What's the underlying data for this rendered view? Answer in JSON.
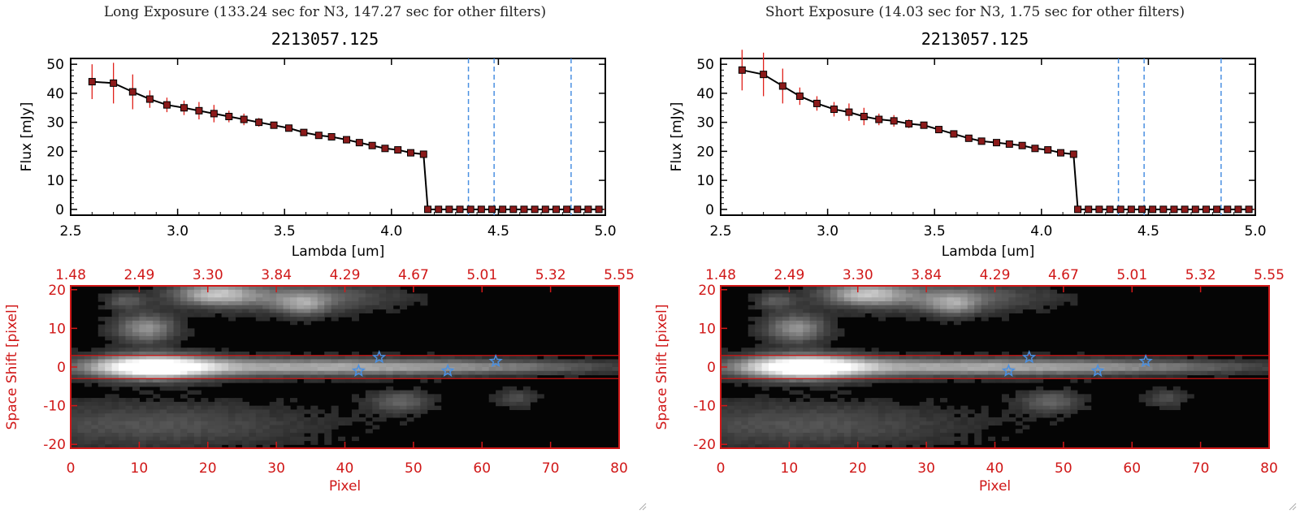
{
  "panels": [
    {
      "id": "left",
      "header": "Long Exposure (133.24 sec for N3, 147.27 sec for other filters)",
      "plot_id": "2213057.125"
    },
    {
      "id": "right",
      "header": "Short Exposure (14.03 sec for N3, 1.75 sec for other filters)",
      "plot_id": "2213057.125"
    }
  ],
  "colors": {
    "spectrum_line": "#000000",
    "marker_fill": "#8b1a1a",
    "error_bar": "#e0201a",
    "vline": "#4a90e2",
    "image_axis": "#d01818",
    "extraction_line": "#cc1010",
    "star": "#4a90e2"
  },
  "chart_data": [
    {
      "type": "line",
      "panel": "left",
      "xlabel": "Lambda [um]",
      "ylabel": "Flux [mJy]",
      "xlim": [
        2.5,
        5.0
      ],
      "ylim": [
        -2,
        52
      ],
      "xticks": [
        "2.5",
        "3.0",
        "3.5",
        "4.0",
        "4.5",
        "5.0"
      ],
      "yticks": [
        "0",
        "10",
        "20",
        "30",
        "40",
        "50"
      ],
      "x": [
        2.6,
        2.7,
        2.79,
        2.87,
        2.95,
        3.03,
        3.1,
        3.17,
        3.24,
        3.31,
        3.38,
        3.45,
        3.52,
        3.59,
        3.66,
        3.72,
        3.79,
        3.85,
        3.91,
        3.97,
        4.03,
        4.09,
        4.15,
        4.17,
        4.22,
        4.27,
        4.32,
        4.37,
        4.42,
        4.47,
        4.52,
        4.57,
        4.62,
        4.67,
        4.72,
        4.77,
        4.82,
        4.87,
        4.92,
        4.97
      ],
      "y": [
        44,
        43.5,
        40.5,
        38,
        36,
        35,
        34,
        33,
        32,
        31,
        30,
        29,
        28,
        26.5,
        25.5,
        25,
        24,
        23,
        22,
        21,
        20.5,
        19.5,
        19,
        0,
        0,
        0,
        0,
        0,
        0,
        0,
        0,
        0,
        0,
        0,
        0,
        0,
        0,
        0,
        0,
        0
      ],
      "yerr": [
        6,
        7,
        6,
        3,
        2.5,
        2.5,
        3,
        3,
        2,
        2,
        1.5,
        1,
        1,
        1,
        1,
        1,
        1,
        1,
        1,
        1,
        1,
        1,
        1,
        0,
        0,
        0,
        0,
        0,
        0,
        0,
        0,
        0,
        0,
        0,
        0,
        0,
        0,
        0,
        0,
        0
      ],
      "vlines": [
        4.36,
        4.48,
        4.84
      ]
    },
    {
      "type": "heatmap",
      "panel": "left",
      "xlabel": "Pixel",
      "ylabel": "Space Shift [pixel]",
      "xlim": [
        0,
        80
      ],
      "ylim": [
        -21,
        21
      ],
      "xticks": [
        "0",
        "10",
        "20",
        "30",
        "40",
        "50",
        "60",
        "70",
        "80"
      ],
      "yticks": [
        "-20",
        "-10",
        "0",
        "10",
        "20"
      ],
      "top_ticks": [
        "1.48",
        "2.49",
        "3.30",
        "3.84",
        "4.29",
        "4.67",
        "5.01",
        "5.32",
        "5.55"
      ],
      "extraction_lines": [
        3,
        -3
      ],
      "stars": [
        [
          42,
          -1
        ],
        [
          45,
          2.5
        ],
        [
          55,
          -1
        ],
        [
          62,
          1.5
        ]
      ],
      "blobs": [
        {
          "x": 12,
          "y": 0,
          "sx": 6,
          "sy": 2.2,
          "v": 1.0
        },
        {
          "x": 30,
          "y": 0,
          "sx": 20,
          "sy": 1.6,
          "v": 0.55
        },
        {
          "x": 60,
          "y": 0,
          "sx": 15,
          "sy": 1.2,
          "v": 0.3
        },
        {
          "x": 21,
          "y": 19,
          "sx": 4,
          "sy": 2,
          "v": 0.55
        },
        {
          "x": 32,
          "y": 18,
          "sx": 10,
          "sy": 2.5,
          "v": 0.35
        },
        {
          "x": 11,
          "y": 10,
          "sx": 3,
          "sy": 2.5,
          "v": 0.5
        },
        {
          "x": 34,
          "y": 16,
          "sx": 2.5,
          "sy": 2,
          "v": 0.35
        },
        {
          "x": 12,
          "y": -15,
          "sx": 16,
          "sy": 4,
          "v": 0.22
        },
        {
          "x": 48,
          "y": -9,
          "sx": 3,
          "sy": 2,
          "v": 0.3
        },
        {
          "x": 65,
          "y": -8,
          "sx": 2,
          "sy": 1.5,
          "v": 0.2
        },
        {
          "x": 8,
          "y": 17,
          "sx": 2,
          "sy": 1.5,
          "v": 0.25
        }
      ]
    },
    {
      "type": "line",
      "panel": "right",
      "xlabel": "Lambda [um]",
      "ylabel": "Flux [mJy]",
      "xlim": [
        2.5,
        5.0
      ],
      "ylim": [
        -2,
        52
      ],
      "xticks": [
        "2.5",
        "3.0",
        "3.5",
        "4.0",
        "4.5",
        "5.0"
      ],
      "yticks": [
        "0",
        "10",
        "20",
        "30",
        "40",
        "50"
      ],
      "x": [
        2.6,
        2.7,
        2.79,
        2.87,
        2.95,
        3.03,
        3.1,
        3.17,
        3.24,
        3.31,
        3.38,
        3.45,
        3.52,
        3.59,
        3.66,
        3.72,
        3.79,
        3.85,
        3.91,
        3.97,
        4.03,
        4.09,
        4.15,
        4.17,
        4.22,
        4.27,
        4.32,
        4.37,
        4.42,
        4.47,
        4.52,
        4.57,
        4.62,
        4.67,
        4.72,
        4.77,
        4.82,
        4.87,
        4.92,
        4.97
      ],
      "y": [
        48,
        46.5,
        42.5,
        39,
        36.5,
        34.5,
        33.5,
        32,
        31,
        30.5,
        29.5,
        29,
        27.5,
        26,
        24.5,
        23.5,
        23,
        22.5,
        22,
        21,
        20.5,
        19.5,
        19,
        0,
        0,
        0,
        0,
        0,
        0,
        0,
        0,
        0,
        0,
        0,
        0,
        0,
        0,
        0,
        0,
        0
      ],
      "yerr": [
        7,
        7.5,
        6,
        3,
        2.5,
        2.5,
        3,
        3,
        2,
        2,
        1.5,
        1,
        1,
        1,
        1,
        1,
        1,
        1,
        1,
        1,
        1,
        1,
        1,
        0,
        0,
        0,
        0,
        0,
        0,
        0,
        0,
        0,
        0,
        0,
        0,
        0,
        0,
        0,
        0,
        0
      ],
      "vlines": [
        4.36,
        4.48,
        4.84
      ]
    },
    {
      "type": "heatmap",
      "panel": "right",
      "xlabel": "Pixel",
      "ylabel": "Space Shift [pixel]",
      "xlim": [
        0,
        80
      ],
      "ylim": [
        -21,
        21
      ],
      "xticks": [
        "0",
        "10",
        "20",
        "30",
        "40",
        "50",
        "60",
        "70",
        "80"
      ],
      "yticks": [
        "-20",
        "-10",
        "0",
        "10",
        "20"
      ],
      "top_ticks": [
        "1.48",
        "2.49",
        "3.30",
        "3.84",
        "4.29",
        "4.67",
        "5.01",
        "5.32",
        "5.55"
      ],
      "extraction_lines": [
        3,
        -3
      ],
      "stars": [
        [
          42,
          -1
        ],
        [
          45,
          2.5
        ],
        [
          55,
          -1
        ],
        [
          62,
          1.5
        ]
      ],
      "blobs": [
        {
          "x": 12,
          "y": 0,
          "sx": 6,
          "sy": 2.2,
          "v": 1.0
        },
        {
          "x": 30,
          "y": 0,
          "sx": 20,
          "sy": 1.6,
          "v": 0.55
        },
        {
          "x": 60,
          "y": 0,
          "sx": 15,
          "sy": 1.2,
          "v": 0.3
        },
        {
          "x": 21,
          "y": 19,
          "sx": 4,
          "sy": 2,
          "v": 0.55
        },
        {
          "x": 32,
          "y": 18,
          "sx": 10,
          "sy": 2.5,
          "v": 0.35
        },
        {
          "x": 11,
          "y": 10,
          "sx": 3,
          "sy": 2.5,
          "v": 0.5
        },
        {
          "x": 34,
          "y": 16,
          "sx": 2.5,
          "sy": 2,
          "v": 0.35
        },
        {
          "x": 12,
          "y": -15,
          "sx": 16,
          "sy": 4,
          "v": 0.22
        },
        {
          "x": 48,
          "y": -9,
          "sx": 3,
          "sy": 2,
          "v": 0.3
        },
        {
          "x": 65,
          "y": -8,
          "sx": 2,
          "sy": 1.5,
          "v": 0.2
        },
        {
          "x": 8,
          "y": 17,
          "sx": 2,
          "sy": 1.5,
          "v": 0.25
        }
      ]
    }
  ]
}
